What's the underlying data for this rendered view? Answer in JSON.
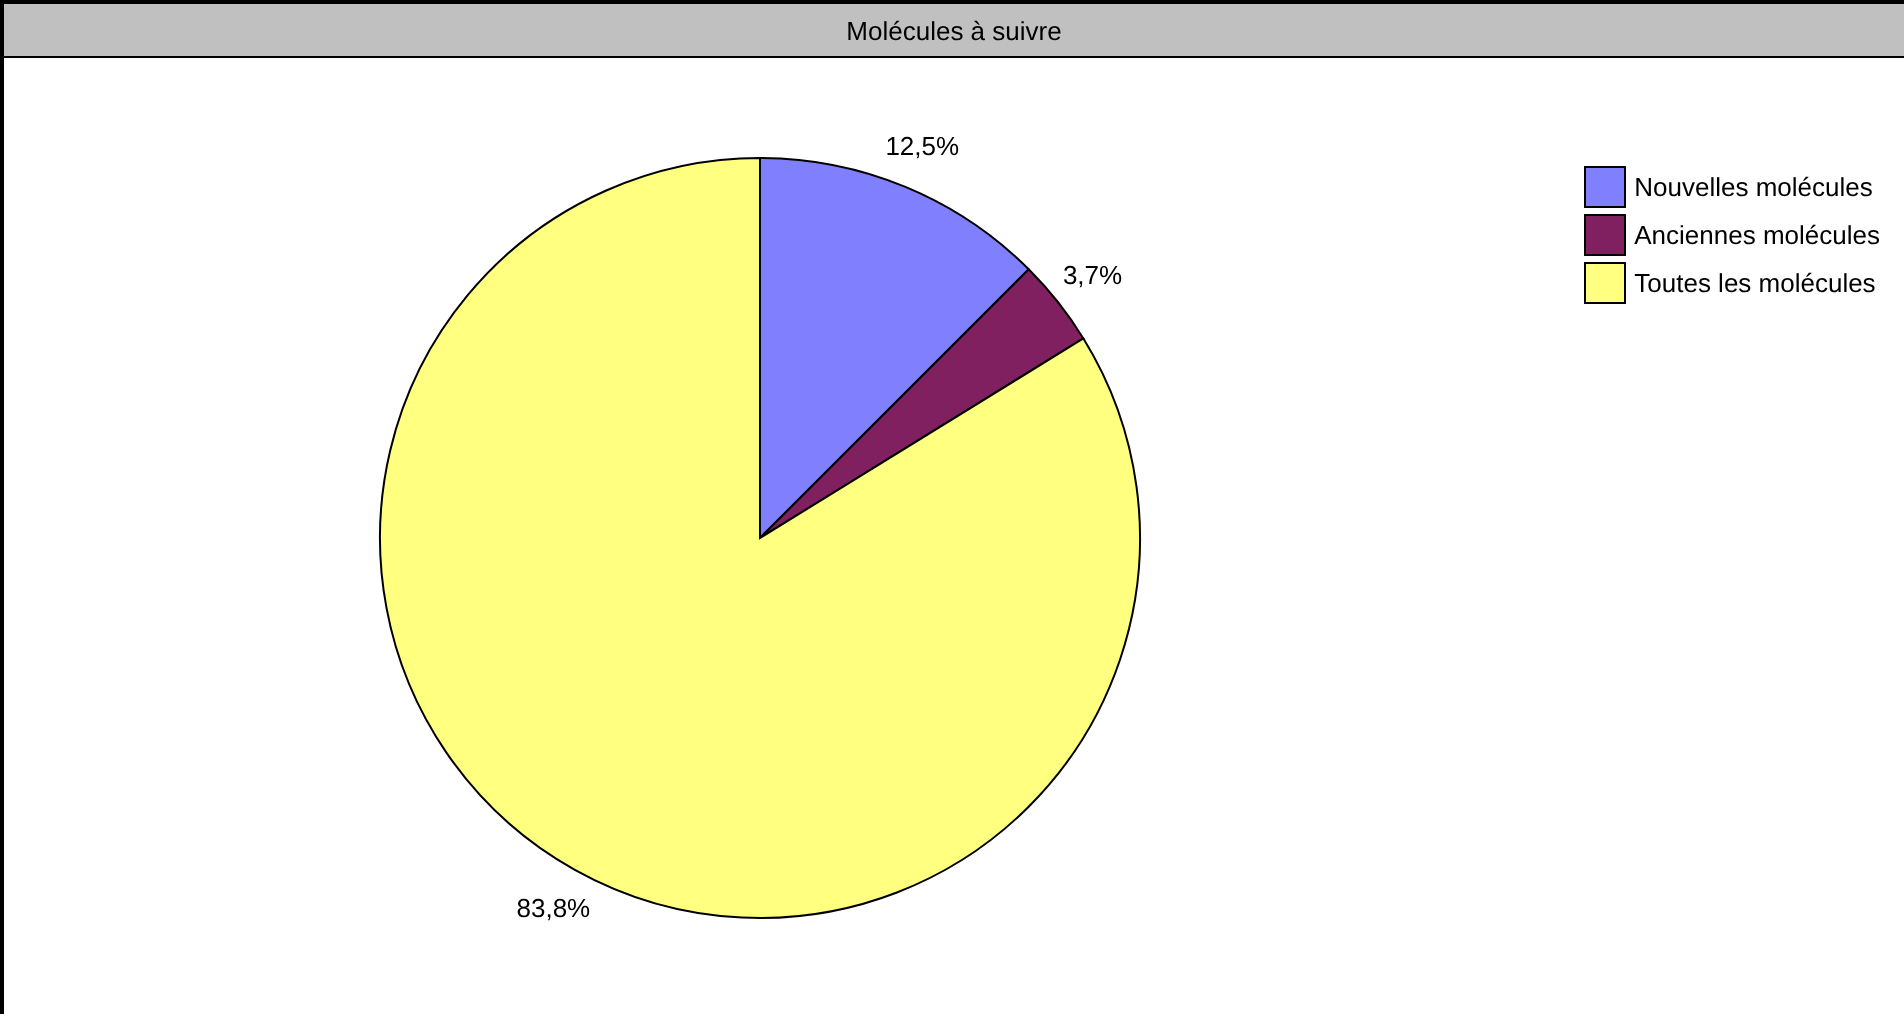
{
  "chart_data": {
    "type": "pie",
    "title": "Molécules à suivre",
    "categories": [
      "Nouvelles molécules",
      "Anciennes molécules",
      "Toutes les molécules"
    ],
    "values": [
      12.5,
      3.7,
      83.8
    ],
    "colors": [
      "#8080ff",
      "#802060",
      "#ffff80"
    ],
    "value_labels": [
      "12,5%",
      "3,7%",
      "83,8%"
    ],
    "legend": "top right"
  }
}
